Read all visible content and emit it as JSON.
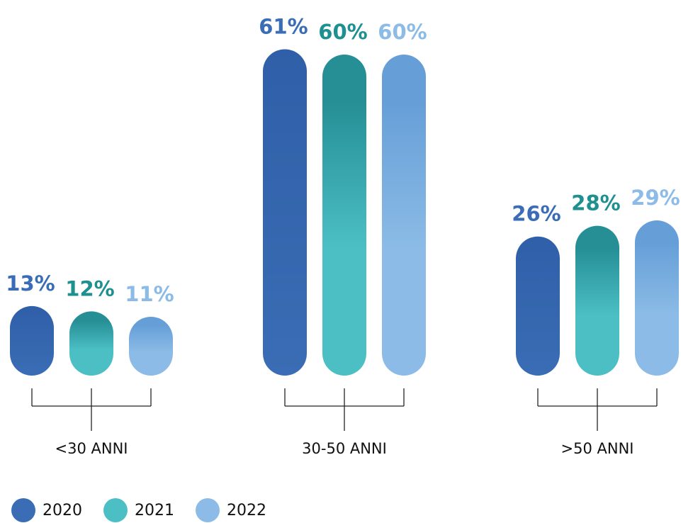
{
  "chart_data": {
    "type": "bar",
    "categories": [
      "<30 ANNI",
      "30-50 ANNI",
      ">50 ANNI"
    ],
    "series": [
      {
        "name": "2020",
        "color": "#3a6db5",
        "values": [
          13,
          61,
          26
        ],
        "value_labels": [
          "13%",
          "61%",
          "26%"
        ]
      },
      {
        "name": "2021",
        "color": "#4bbfc4",
        "values": [
          12,
          60,
          28
        ],
        "value_labels": [
          "12%",
          "60%",
          "28%"
        ]
      },
      {
        "name": "2022",
        "color": "#8bbbe6",
        "values": [
          11,
          60,
          29
        ],
        "value_labels": [
          "11%",
          "60%",
          "29%"
        ]
      }
    ]
  }
}
